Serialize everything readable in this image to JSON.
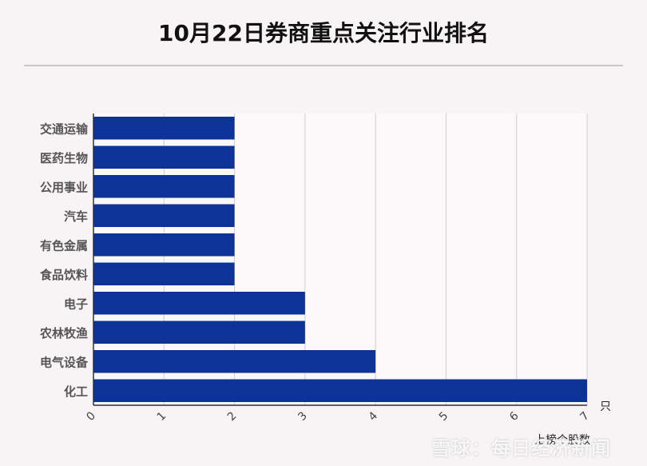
{
  "title": "10月22日券商重点关注行业排名",
  "watermark": "雪球：每日经济新闻",
  "colors": {
    "bar": "#0d3399",
    "grid": "#cfcfcf",
    "axis": "#333333",
    "label": "#555555"
  },
  "chart_data": {
    "type": "bar",
    "orientation": "horizontal",
    "categories": [
      "交通运输",
      "医药生物",
      "公用事业",
      "汽车",
      "有色金属",
      "食品饮料",
      "电子",
      "农林牧渔",
      "电气设备",
      "化工"
    ],
    "values": [
      2,
      2,
      2,
      2,
      2,
      2,
      3,
      3,
      4,
      7
    ],
    "xlabel": "上榜个股数",
    "unit": "只",
    "xlim": [
      0,
      7
    ],
    "xticks": [
      0,
      1,
      2,
      3,
      4,
      5,
      6,
      7
    ],
    "grid": true
  }
}
